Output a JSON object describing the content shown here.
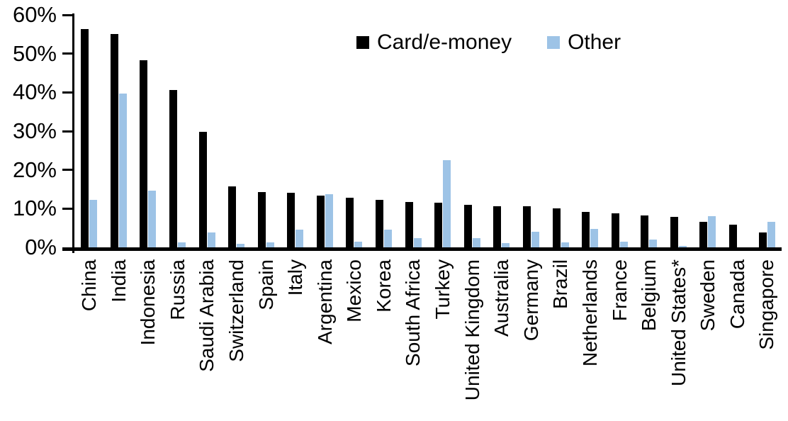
{
  "chart_data": {
    "type": "bar",
    "title": "",
    "xlabel": "",
    "ylabel": "",
    "ylim": [
      0,
      60
    ],
    "yticks": [
      "0%",
      "10%",
      "20%",
      "30%",
      "40%",
      "50%",
      "60%"
    ],
    "grid": false,
    "legend_position": "top-center",
    "categories": [
      "China",
      "India",
      "Indonesia",
      "Russia",
      "Saudi Arabia",
      "Switzerland",
      "Spain",
      "Italy",
      "Argentina",
      "Mexico",
      "Korea",
      "South Africa",
      "Turkey",
      "United Kingdom",
      "Australia",
      "Germany",
      "Brazil",
      "Netherlands",
      "France",
      "Belgium",
      "United States*",
      "Sweden",
      "Canada",
      "Singapore"
    ],
    "series": [
      {
        "name": "Card/e-money",
        "color": "#000000",
        "values": [
          56.3,
          55.0,
          48.3,
          40.6,
          29.8,
          15.7,
          14.2,
          14.1,
          13.3,
          12.8,
          12.2,
          11.7,
          11.5,
          11.0,
          10.7,
          10.6,
          10.0,
          9.2,
          8.7,
          8.2,
          7.8,
          6.5,
          5.9,
          3.8
        ]
      },
      {
        "name": "Other",
        "color": "#9DC3E6",
        "values": [
          12.3,
          39.7,
          14.6,
          1.2,
          3.9,
          0.9,
          1.2,
          4.5,
          13.8,
          1.5,
          4.6,
          2.4,
          22.5,
          2.3,
          1.1,
          4.0,
          1.2,
          4.8,
          1.5,
          2.1,
          0.3,
          8.0,
          0.0,
          6.5
        ]
      }
    ]
  }
}
